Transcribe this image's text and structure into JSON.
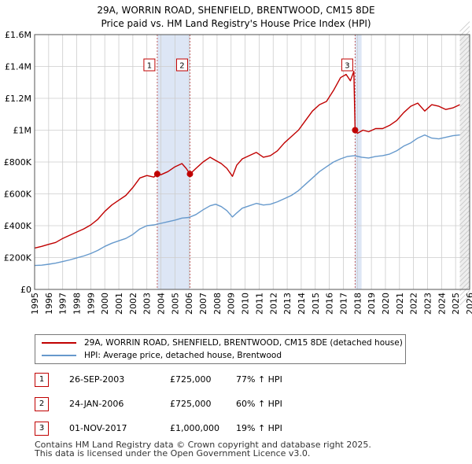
{
  "title_line1": "29A, WORRIN ROAD, SHENFIELD, BRENTWOOD, CM15 8DE",
  "title_line2": "Price paid vs. HM Land Registry's House Price Index (HPI)",
  "colors": {
    "property_line": "#c00000",
    "hpi_line": "#6699cc",
    "highlight_band": "#dde6f5",
    "grid": "#cccccc",
    "marker_border": "#c00000"
  },
  "chart_data": {
    "type": "line",
    "xlim": [
      1995,
      2026
    ],
    "ylim": [
      0,
      1600000
    ],
    "x_ticks": [
      1995,
      1996,
      1997,
      1998,
      1999,
      2000,
      2001,
      2002,
      2003,
      2004,
      2005,
      2006,
      2007,
      2008,
      2009,
      2010,
      2011,
      2012,
      2013,
      2014,
      2015,
      2016,
      2017,
      2018,
      2019,
      2020,
      2021,
      2022,
      2023,
      2024,
      2025,
      2026
    ],
    "x_tick_labels": [
      "1995",
      "1996",
      "1997",
      "1998",
      "1999",
      "2000",
      "2001",
      "2002",
      "2003",
      "2004",
      "2005",
      "2006",
      "2007",
      "2008",
      "2009",
      "2010",
      "2011",
      "2012",
      "2013",
      "2014",
      "2015",
      "2016",
      "2017",
      "2018",
      "2019",
      "2020",
      "2021",
      "2022",
      "2023",
      "2024",
      "2025",
      "2026"
    ],
    "y_ticks": [
      0,
      200000,
      400000,
      600000,
      800000,
      1000000,
      1200000,
      1400000,
      1600000
    ],
    "y_tick_labels": [
      "£0",
      "£200K",
      "£400K",
      "£600K",
      "£800K",
      "£1M",
      "£1.2M",
      "£1.4M",
      "£1.6M"
    ],
    "series": [
      {
        "name": "29A, WORRIN ROAD, SHENFIELD, BRENTWOOD, CM15 8DE (detached house)",
        "color": "#c00000",
        "x": [
          1995.0,
          1995.5,
          1996.0,
          1996.5,
          1997.0,
          1997.5,
          1998.0,
          1998.5,
          1999.0,
          1999.5,
          2000.0,
          2000.5,
          2001.0,
          2001.5,
          2002.0,
          2002.5,
          2003.0,
          2003.5,
          2003.74,
          2004.0,
          2004.5,
          2005.0,
          2005.5,
          2005.8,
          2006.07,
          2006.5,
          2007.0,
          2007.5,
          2007.9,
          2008.3,
          2008.7,
          2009.1,
          2009.4,
          2009.8,
          2010.3,
          2010.8,
          2011.3,
          2011.8,
          2012.3,
          2012.8,
          2013.3,
          2013.8,
          2014.3,
          2014.8,
          2015.3,
          2015.8,
          2016.3,
          2016.8,
          2017.2,
          2017.5,
          2017.75,
          2017.84,
          2018.0,
          2018.4,
          2018.8,
          2019.3,
          2019.8,
          2020.3,
          2020.8,
          2021.3,
          2021.8,
          2022.3,
          2022.8,
          2023.3,
          2023.8,
          2024.3,
          2024.8,
          2025.3
        ],
        "y": [
          260000,
          270000,
          283000,
          295000,
          320000,
          340000,
          360000,
          380000,
          405000,
          440000,
          490000,
          530000,
          560000,
          590000,
          640000,
          700000,
          715000,
          705000,
          725000,
          720000,
          740000,
          770000,
          790000,
          760000,
          725000,
          760000,
          800000,
          830000,
          810000,
          790000,
          760000,
          710000,
          780000,
          820000,
          840000,
          860000,
          830000,
          840000,
          870000,
          920000,
          960000,
          1000000,
          1060000,
          1120000,
          1160000,
          1180000,
          1250000,
          1330000,
          1350000,
          1310000,
          1370000,
          1000000,
          980000,
          1000000,
          990000,
          1010000,
          1010000,
          1030000,
          1060000,
          1110000,
          1150000,
          1170000,
          1120000,
          1160000,
          1150000,
          1130000,
          1140000,
          1160000
        ]
      },
      {
        "name": "HPI: Average price, detached house, Brentwood",
        "color": "#6699cc",
        "x": [
          1995.0,
          1995.5,
          1996.0,
          1996.5,
          1997.0,
          1997.5,
          1998.0,
          1998.5,
          1999.0,
          1999.5,
          2000.0,
          2000.5,
          2001.0,
          2001.5,
          2002.0,
          2002.5,
          2003.0,
          2003.5,
          2004.0,
          2004.5,
          2005.0,
          2005.5,
          2006.0,
          2006.5,
          2007.0,
          2007.5,
          2007.9,
          2008.3,
          2008.7,
          2009.1,
          2009.4,
          2009.8,
          2010.3,
          2010.8,
          2011.3,
          2011.8,
          2012.3,
          2012.8,
          2013.3,
          2013.8,
          2014.3,
          2014.8,
          2015.3,
          2015.8,
          2016.3,
          2016.8,
          2017.3,
          2017.8,
          2018.3,
          2018.8,
          2019.3,
          2019.8,
          2020.3,
          2020.8,
          2021.3,
          2021.8,
          2022.3,
          2022.8,
          2023.3,
          2023.8,
          2024.3,
          2024.8,
          2025.3
        ],
        "y": [
          150000,
          152000,
          158000,
          165000,
          175000,
          185000,
          198000,
          210000,
          225000,
          245000,
          270000,
          290000,
          305000,
          320000,
          345000,
          380000,
          400000,
          405000,
          415000,
          425000,
          435000,
          448000,
          452000,
          470000,
          500000,
          525000,
          535000,
          520000,
          495000,
          455000,
          480000,
          510000,
          525000,
          540000,
          530000,
          535000,
          550000,
          570000,
          590000,
          620000,
          660000,
          700000,
          740000,
          770000,
          800000,
          820000,
          835000,
          840000,
          830000,
          825000,
          835000,
          840000,
          850000,
          870000,
          900000,
          920000,
          950000,
          970000,
          950000,
          945000,
          955000,
          965000,
          970000
        ]
      }
    ],
    "sales": [
      {
        "label": "1",
        "date": "26-SEP-2003",
        "x": 2003.74,
        "price": 725000,
        "price_text": "£725,000",
        "hpi_text": "77% ↑ HPI"
      },
      {
        "label": "2",
        "date": "24-JAN-2006",
        "x": 2006.07,
        "price": 725000,
        "price_text": "£725,000",
        "hpi_text": "60% ↑ HPI"
      },
      {
        "label": "3",
        "date": "01-NOV-2017",
        "x": 2017.84,
        "price": 1000000,
        "price_text": "£1,000,000",
        "hpi_text": "19% ↑ HPI"
      }
    ],
    "highlight_ranges": [
      [
        2003.74,
        2006.07
      ],
      [
        2017.84,
        2018.3
      ]
    ],
    "forecast_start": 2025.3
  },
  "legend": {
    "property_label": "29A, WORRIN ROAD, SHENFIELD, BRENTWOOD, CM15 8DE (detached house)",
    "hpi_label": "HPI: Average price, detached house, Brentwood"
  },
  "footer_line1": "Contains HM Land Registry data © Crown copyright and database right 2025.",
  "footer_line2": "This data is licensed under the Open Government Licence v3.0."
}
